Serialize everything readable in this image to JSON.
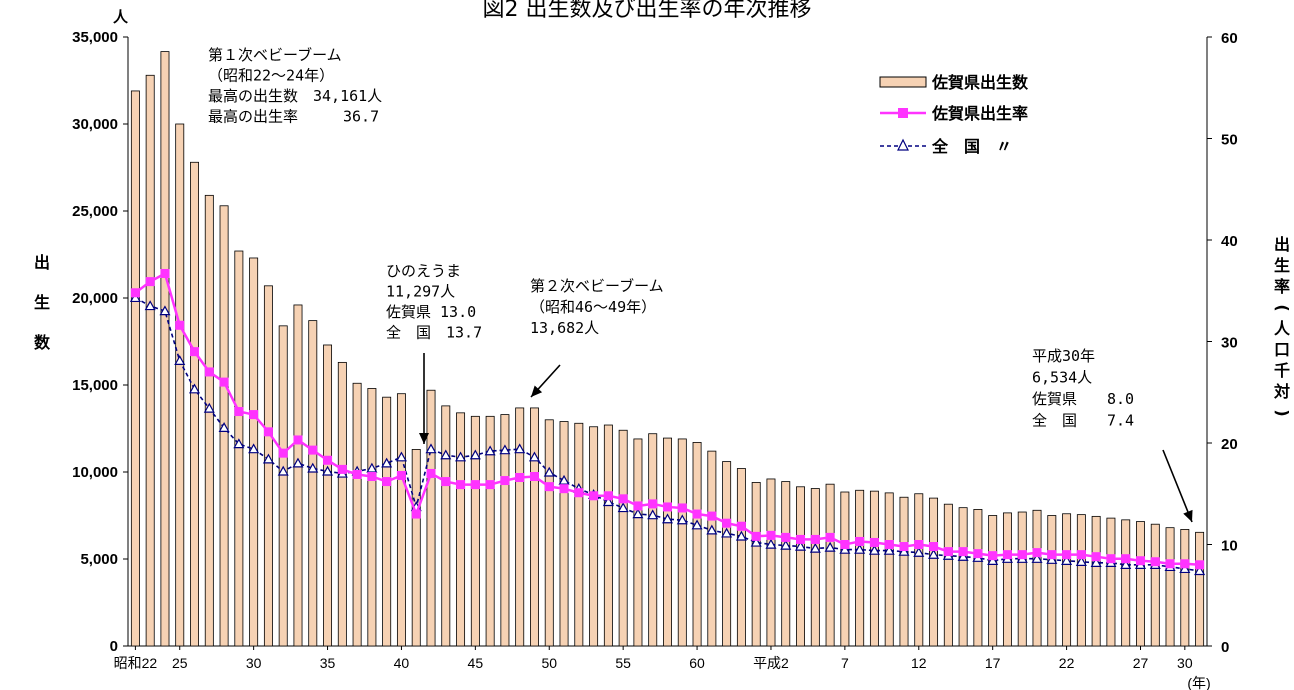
{
  "title": "図2 出生数及び出生率の年次推移",
  "y_left_unit": "人",
  "y_left_label": [
    "出",
    "生",
    "数"
  ],
  "y_right_label": [
    "出",
    "生",
    "率",
    "(",
    "人",
    "口",
    "千",
    "対",
    ")"
  ],
  "x_unit": "(年)",
  "annotations": {
    "boom1": [
      "第１次ベビーブーム",
      "（昭和22～24年）",
      "最高の出生数　34,161人",
      "最高の出生率　　　36.7"
    ],
    "hinoe": [
      "ひのえうま",
      "11,297人",
      "佐賀県 13.0",
      "全　国　13.7"
    ],
    "boom2": [
      "第２次ベビーブーム",
      "（昭和46～49年）",
      "13,682人"
    ],
    "h30": [
      "平成30年",
      "6,534人",
      "佐賀県　　8.0",
      "全　国　　7.4"
    ]
  },
  "legend": [
    {
      "label": "佐賀県出生数",
      "color": "#F6D2B4",
      "marker": "bar"
    },
    {
      "label": "佐賀県出生率",
      "color": "#FF33FF",
      "marker": "square"
    },
    {
      "label": "全　国　〃",
      "color": "#000080",
      "marker": "triangle"
    }
  ],
  "chart_data": {
    "type": "bar",
    "title": "図2 出生数及び出生率の年次推移",
    "x_labels": [
      "昭和22",
      "25",
      "30",
      "35",
      "40",
      "45",
      "50",
      "55",
      "60",
      "平成2",
      "7",
      "12",
      "17",
      "22",
      "27",
      "30"
    ],
    "x_label_index": [
      0,
      3,
      8,
      13,
      18,
      23,
      28,
      33,
      38,
      43,
      48,
      53,
      58,
      63,
      68,
      71
    ],
    "ylim_left": [
      0,
      35000
    ],
    "ylim_right": [
      0,
      60
    ],
    "yticks_left": [
      "0",
      "5,000",
      "10,000",
      "15,000",
      "20,000",
      "25,000",
      "30,000",
      "35,000"
    ],
    "yticks_right": [
      "0",
      "10",
      "20",
      "30",
      "40",
      "50",
      "60"
    ],
    "legend_position": "top-right",
    "series": [
      {
        "name": "佐賀県出生数",
        "axis": "left",
        "type": "bar",
        "values": [
          31900,
          32800,
          34161,
          30000,
          27800,
          25900,
          25300,
          22700,
          22300,
          20700,
          18400,
          19600,
          18700,
          17300,
          16300,
          15100,
          14800,
          14300,
          14500,
          11297,
          14700,
          13800,
          13400,
          13200,
          13200,
          13300,
          13682,
          13682,
          13000,
          12900,
          12800,
          12600,
          12700,
          12400,
          11900,
          12200,
          11950,
          11900,
          11700,
          11200,
          10600,
          10200,
          9400,
          9600,
          9450,
          9150,
          9050,
          9300,
          8850,
          8950,
          8900,
          8800,
          8550,
          8750,
          8500,
          8150,
          7950,
          7850,
          7500,
          7650,
          7700,
          7800,
          7500,
          7600,
          7550,
          7450,
          7350,
          7250,
          7150,
          7000,
          6800,
          6700,
          6534
        ]
      },
      {
        "name": "佐賀県出生率",
        "axis": "right",
        "type": "line",
        "values": [
          34.8,
          35.9,
          36.7,
          31.6,
          29.0,
          27.0,
          26.0,
          23.1,
          22.8,
          21.1,
          19.0,
          20.3,
          19.3,
          18.3,
          17.4,
          16.9,
          16.7,
          16.2,
          16.8,
          13.0,
          17.0,
          16.2,
          15.9,
          15.9,
          15.9,
          16.3,
          16.6,
          16.7,
          15.7,
          15.5,
          15.1,
          14.8,
          14.8,
          14.5,
          13.8,
          14.0,
          13.7,
          13.6,
          13.0,
          12.8,
          12.1,
          11.8,
          10.8,
          10.9,
          10.7,
          10.5,
          10.5,
          10.7,
          10.0,
          10.3,
          10.2,
          10.0,
          9.8,
          10.0,
          9.8,
          9.3,
          9.3,
          9.1,
          8.9,
          9.0,
          9.0,
          9.2,
          9.0,
          9.0,
          9.0,
          8.8,
          8.6,
          8.6,
          8.4,
          8.3,
          8.1,
          8.1,
          8.0
        ]
      },
      {
        "name": "全　国　〃",
        "axis": "right",
        "type": "line",
        "values": [
          34.3,
          33.5,
          33.0,
          28.1,
          25.3,
          23.4,
          21.5,
          19.9,
          19.4,
          18.4,
          17.2,
          18.0,
          17.5,
          17.2,
          17.0,
          17.2,
          17.5,
          18.0,
          18.6,
          13.7,
          19.4,
          18.8,
          18.6,
          18.8,
          19.2,
          19.3,
          19.4,
          18.6,
          17.1,
          16.3,
          15.5,
          14.9,
          14.2,
          13.6,
          13.0,
          12.9,
          12.5,
          12.4,
          11.9,
          11.4,
          11.1,
          10.8,
          10.2,
          10.0,
          9.9,
          9.8,
          9.6,
          9.7,
          9.5,
          9.5,
          9.4,
          9.4,
          9.3,
          9.2,
          9.0,
          8.9,
          8.8,
          8.7,
          8.4,
          8.6,
          8.6,
          8.6,
          8.5,
          8.4,
          8.3,
          8.2,
          8.2,
          8.0,
          8.0,
          8.0,
          7.8,
          7.6,
          7.4
        ]
      }
    ]
  }
}
